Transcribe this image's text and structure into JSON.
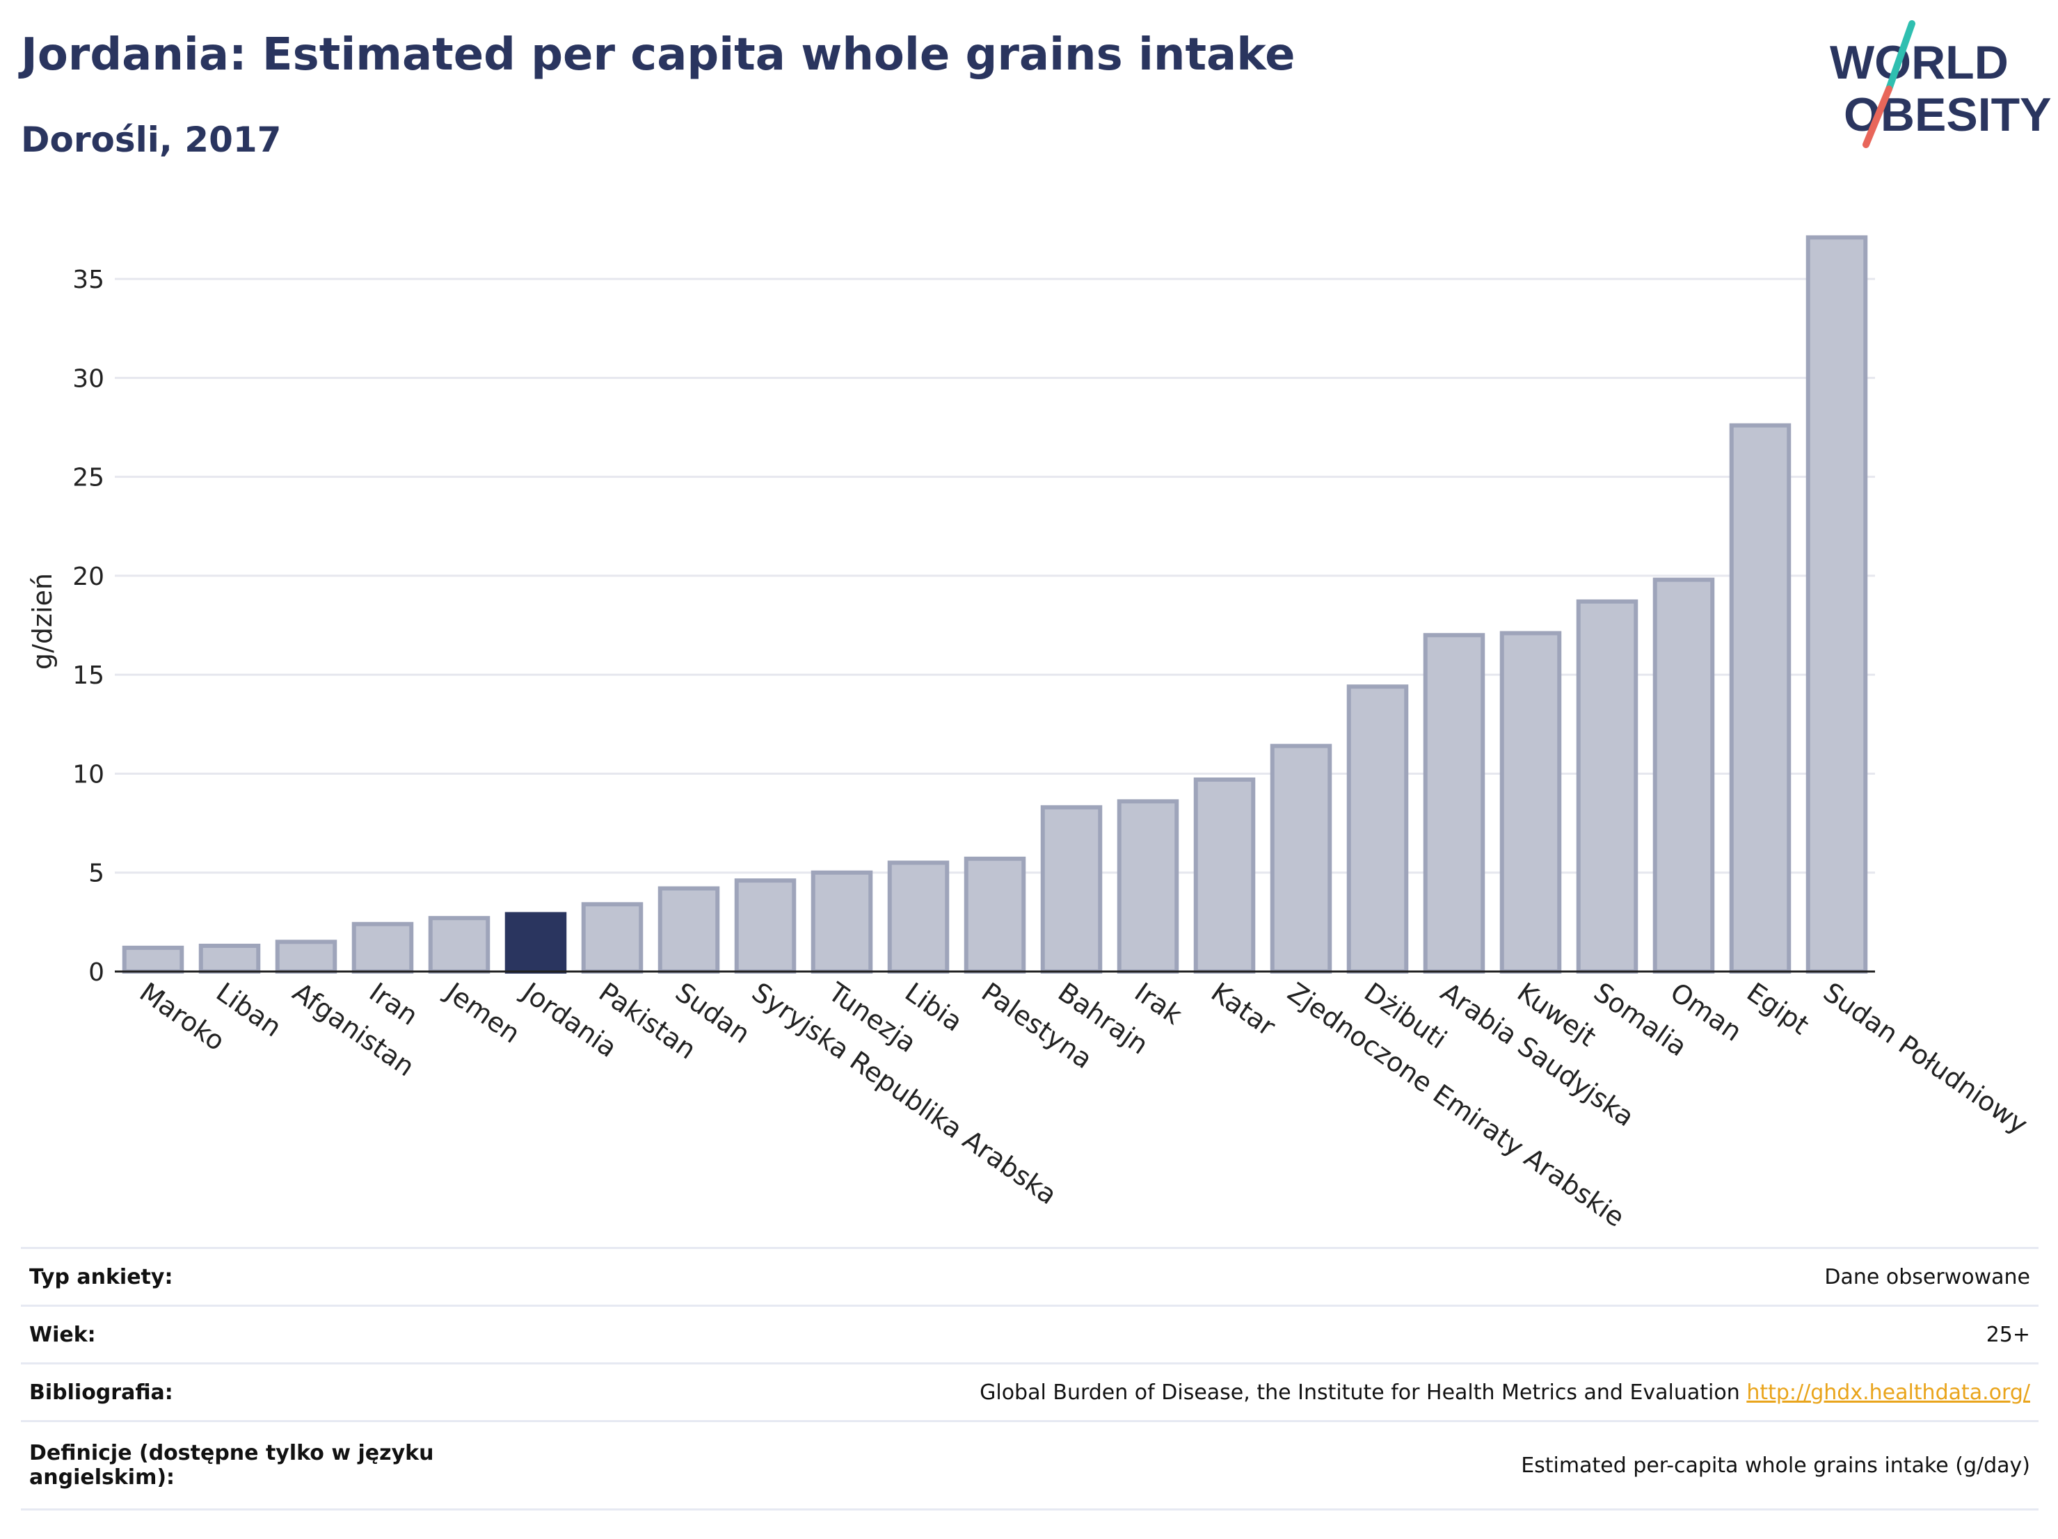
{
  "header": {
    "title": "Jordania: Estimated per capita whole grains intake",
    "subtitle": "Dorośli, 2017"
  },
  "logo": {
    "line1": "WORLD",
    "line2": "OBESITY",
    "colors": {
      "text": "#2a355f",
      "slash_top": "#2fbfb0",
      "slash_bottom": "#e8665a"
    }
  },
  "colors": {
    "highlight": "#2a355f",
    "bar_fill": "#bfc3d1",
    "bar_stroke": "#9ea4ba",
    "grid": "#e6e7ee",
    "axis": "#222222",
    "link": "#e9a41b"
  },
  "chart_data": {
    "type": "bar",
    "title": "Jordania: Estimated per capita whole grains intake",
    "subtitle": "Dorośli, 2017",
    "xlabel": "",
    "ylabel": "g/dzień",
    "ylim": [
      0,
      37.5
    ],
    "yticks": [
      0,
      5,
      10,
      15,
      20,
      25,
      30,
      35
    ],
    "grid": true,
    "highlight": "Jordania",
    "categories": [
      "Maroko",
      "Liban",
      "Afganistan",
      "Iran",
      "Jemen",
      "Jordania",
      "Pakistan",
      "Sudan",
      "Syryjska Republika Arabska",
      "Tunezja",
      "Libia",
      "Palestyna",
      "Bahrajn",
      "Irak",
      "Katar",
      "Zjednoczone Emiraty Arabskie",
      "Dżibuti",
      "Arabia Saudyjska",
      "Kuwejt",
      "Somalia",
      "Oman",
      "Egipt",
      "Sudan Południowy"
    ],
    "values": [
      1.2,
      1.3,
      1.5,
      2.4,
      2.7,
      2.9,
      3.4,
      4.2,
      4.6,
      5.0,
      5.5,
      5.7,
      8.3,
      8.6,
      9.7,
      11.4,
      14.4,
      17.0,
      17.1,
      18.7,
      19.8,
      27.6,
      37.1
    ]
  },
  "info": {
    "rows": [
      {
        "label": "Typ ankiety:",
        "value": "Dane obserwowane"
      },
      {
        "label": "Wiek:",
        "value": "25+"
      },
      {
        "label": "Bibliografia:",
        "value": "Global Burden of Disease, the Institute for Health Metrics and Evaluation",
        "link": "http://ghdx.healthdata.org/"
      },
      {
        "label": "Definicje (dostępne tylko w języku angielskim):",
        "value": "Estimated per-capita whole grains intake (g/day)"
      }
    ]
  }
}
